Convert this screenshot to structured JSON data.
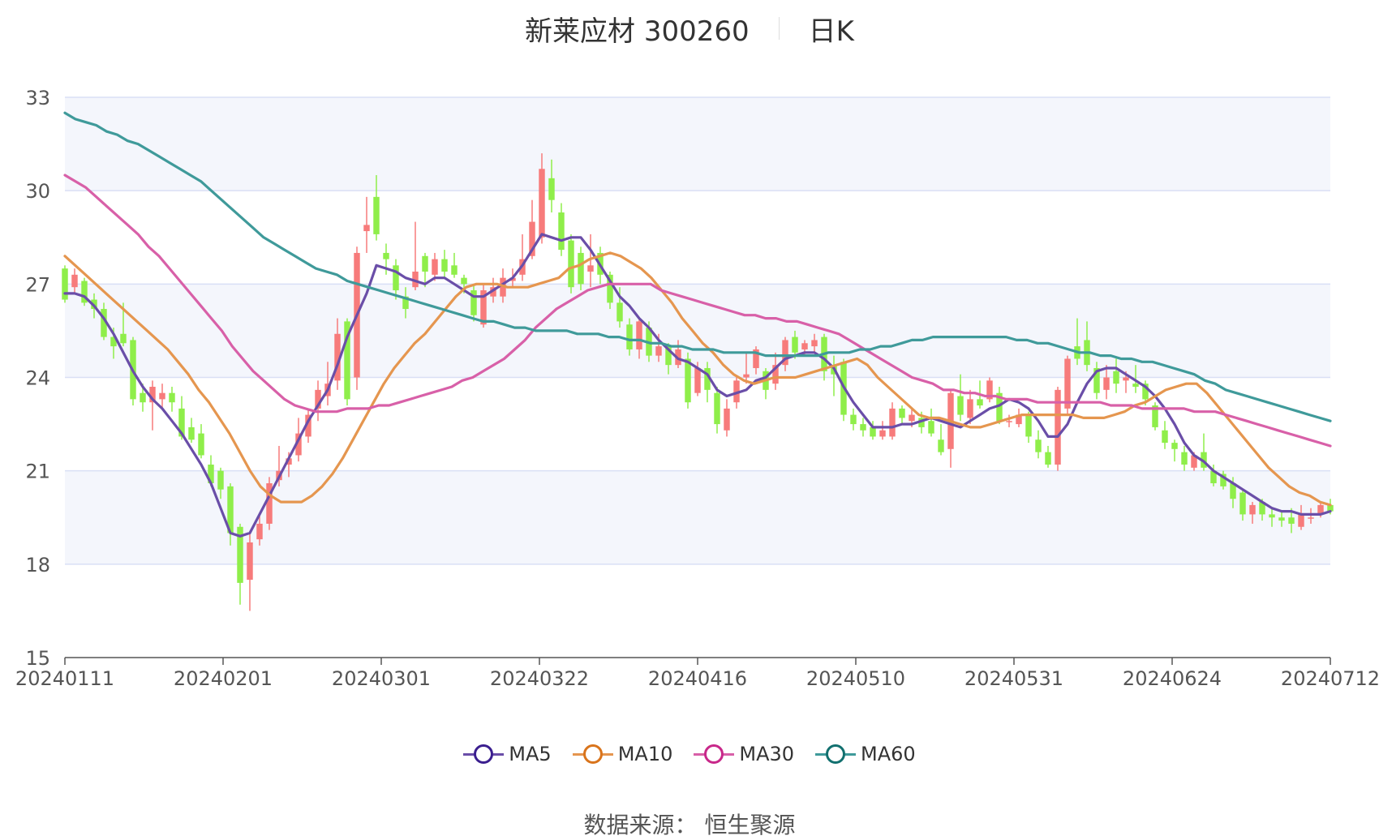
{
  "header": {
    "title": "新莱应材 300260",
    "period": "日K"
  },
  "legend": [
    {
      "name": "MA5",
      "color": "#6a4ea8",
      "ring": "#3b1f8f"
    },
    {
      "name": "MA10",
      "color": "#e5964f",
      "ring": "#d9741c"
    },
    {
      "name": "MA30",
      "color": "#d860a8",
      "ring": "#c8288a"
    },
    {
      "name": "MA60",
      "color": "#3f9a9a",
      "ring": "#12706f"
    }
  ],
  "source": "数据来源： 恒生聚源",
  "colors": {
    "up": "#f77b7b",
    "down": "#8fee4a",
    "grid": "#d9dff5",
    "band": "#f4f6fc"
  },
  "chart_data": {
    "type": "candlestick",
    "title": "新莱应材 300260",
    "y_ticks": [
      15,
      18,
      21,
      24,
      27,
      30,
      33
    ],
    "ylim": [
      15,
      33
    ],
    "x_ticks": [
      "20240111",
      "20240201",
      "20240301",
      "20240322",
      "20240416",
      "20240510",
      "20240531",
      "20240624",
      "20240712"
    ],
    "candles": [
      [
        27.5,
        26.5,
        27.6,
        26.4
      ],
      [
        26.9,
        27.3,
        27.5,
        26.7
      ],
      [
        27.1,
        26.4,
        27.2,
        26.3
      ],
      [
        26.5,
        26.2,
        26.7,
        25.9
      ],
      [
        26.2,
        25.3,
        26.4,
        25.2
      ],
      [
        25.3,
        25.0,
        25.6,
        24.6
      ],
      [
        25.4,
        25.1,
        26.4,
        25.0
      ],
      [
        25.2,
        23.3,
        25.3,
        23.1
      ],
      [
        23.5,
        23.2,
        23.8,
        22.9
      ],
      [
        23.2,
        23.7,
        23.9,
        22.3
      ],
      [
        23.3,
        23.5,
        23.8,
        23.0
      ],
      [
        23.5,
        23.2,
        23.7,
        22.9
      ],
      [
        23.0,
        22.1,
        23.4,
        22.0
      ],
      [
        22.4,
        22.0,
        22.7,
        21.9
      ],
      [
        22.2,
        21.5,
        22.5,
        21.4
      ],
      [
        21.2,
        20.6,
        21.5,
        20.5
      ],
      [
        21.0,
        20.4,
        21.1,
        20.1
      ],
      [
        20.5,
        19.0,
        20.6,
        18.6
      ],
      [
        19.2,
        17.4,
        19.3,
        16.7
      ],
      [
        17.5,
        18.7,
        19.0,
        16.5
      ],
      [
        18.8,
        19.3,
        19.6,
        18.6
      ],
      [
        19.3,
        20.6,
        20.8,
        19.1
      ],
      [
        20.7,
        21.0,
        21.8,
        20.5
      ],
      [
        21.2,
        21.4,
        21.6,
        20.8
      ],
      [
        21.5,
        22.2,
        22.7,
        21.3
      ],
      [
        22.1,
        22.8,
        23.0,
        21.9
      ],
      [
        23.0,
        23.6,
        23.9,
        22.6
      ],
      [
        23.4,
        23.8,
        24.5,
        23.1
      ],
      [
        23.9,
        25.4,
        25.9,
        23.6
      ],
      [
        25.8,
        23.3,
        25.9,
        23.1
      ],
      [
        24.0,
        28.0,
        28.2,
        23.6
      ],
      [
        28.7,
        28.9,
        29.8,
        28.0
      ],
      [
        29.8,
        28.6,
        30.5,
        28.4
      ],
      [
        28.0,
        27.8,
        28.3,
        27.3
      ],
      [
        27.6,
        26.8,
        27.8,
        26.5
      ],
      [
        26.6,
        26.2,
        26.9,
        25.9
      ],
      [
        26.9,
        27.4,
        29.0,
        26.8
      ],
      [
        27.9,
        27.4,
        28.0,
        26.9
      ],
      [
        27.3,
        27.8,
        28.0,
        27.1
      ],
      [
        27.8,
        27.4,
        28.1,
        27.2
      ],
      [
        27.6,
        27.3,
        28.0,
        27.2
      ],
      [
        27.2,
        27.0,
        27.3,
        26.7
      ],
      [
        26.8,
        26.0,
        27.0,
        25.8
      ],
      [
        25.7,
        26.8,
        27.0,
        25.6
      ],
      [
        26.6,
        26.9,
        27.2,
        26.4
      ],
      [
        26.6,
        27.2,
        27.5,
        26.4
      ],
      [
        27.1,
        27.2,
        27.5,
        26.9
      ],
      [
        27.3,
        27.8,
        28.6,
        27.1
      ],
      [
        27.9,
        29.0,
        29.7,
        27.8
      ],
      [
        28.5,
        30.7,
        31.2,
        28.3
      ],
      [
        30.4,
        29.7,
        31.0,
        29.3
      ],
      [
        29.3,
        28.1,
        29.6,
        27.9
      ],
      [
        28.4,
        26.9,
        28.6,
        26.7
      ],
      [
        28.0,
        27.0,
        28.2,
        26.8
      ],
      [
        27.4,
        27.6,
        28.6,
        26.9
      ],
      [
        28.0,
        27.3,
        28.2,
        27.0
      ],
      [
        27.3,
        26.4,
        27.4,
        26.2
      ],
      [
        26.4,
        25.8,
        26.9,
        25.6
      ],
      [
        25.7,
        24.9,
        25.9,
        24.7
      ],
      [
        24.9,
        25.8,
        25.9,
        24.6
      ],
      [
        25.6,
        24.7,
        25.8,
        24.5
      ],
      [
        24.7,
        25.0,
        25.4,
        24.5
      ],
      [
        25.0,
        24.4,
        25.1,
        24.1
      ],
      [
        24.4,
        24.9,
        25.2,
        24.3
      ],
      [
        24.6,
        23.2,
        24.8,
        23.0
      ],
      [
        23.5,
        24.3,
        24.5,
        23.4
      ],
      [
        24.3,
        23.6,
        24.5,
        23.2
      ],
      [
        23.5,
        22.5,
        23.7,
        22.2
      ],
      [
        22.3,
        23.0,
        23.3,
        22.1
      ],
      [
        23.2,
        23.9,
        24.0,
        23.0
      ],
      [
        24.0,
        24.1,
        24.8,
        23.8
      ],
      [
        24.3,
        24.9,
        25.0,
        24.1
      ],
      [
        24.2,
        23.6,
        24.3,
        23.3
      ],
      [
        23.8,
        24.4,
        24.8,
        23.6
      ],
      [
        24.4,
        25.2,
        25.3,
        24.2
      ],
      [
        25.3,
        24.8,
        25.5,
        24.6
      ],
      [
        24.9,
        25.1,
        25.2,
        24.7
      ],
      [
        25.0,
        25.2,
        25.4,
        24.8
      ],
      [
        25.3,
        24.2,
        25.4,
        23.9
      ],
      [
        24.4,
        24.1,
        24.7,
        23.4
      ],
      [
        24.5,
        22.8,
        24.6,
        22.6
      ],
      [
        22.8,
        22.5,
        23.0,
        22.3
      ],
      [
        22.5,
        22.3,
        22.7,
        22.1
      ],
      [
        22.4,
        22.1,
        22.6,
        22.0
      ],
      [
        22.1,
        22.3,
        22.6,
        22.0
      ],
      [
        22.1,
        23.0,
        23.2,
        22.0
      ],
      [
        23.0,
        22.7,
        23.1,
        22.5
      ],
      [
        22.6,
        22.8,
        23.0,
        22.4
      ],
      [
        22.7,
        22.4,
        22.9,
        22.2
      ],
      [
        22.6,
        22.2,
        23.0,
        22.1
      ],
      [
        22.0,
        21.6,
        22.5,
        21.5
      ],
      [
        21.7,
        23.5,
        23.6,
        21.1
      ],
      [
        23.4,
        22.8,
        24.1,
        22.6
      ],
      [
        22.7,
        23.3,
        23.6,
        22.5
      ],
      [
        23.3,
        23.1,
        23.9,
        23.0
      ],
      [
        23.3,
        23.9,
        24.0,
        23.2
      ],
      [
        23.5,
        22.6,
        23.7,
        22.5
      ],
      [
        22.6,
        22.6,
        22.8,
        22.4
      ],
      [
        22.5,
        22.8,
        23.0,
        22.4
      ],
      [
        22.8,
        22.1,
        22.9,
        21.9
      ],
      [
        22.0,
        21.6,
        22.3,
        21.4
      ],
      [
        21.6,
        21.2,
        21.8,
        21.1
      ],
      [
        21.2,
        23.6,
        23.7,
        21.0
      ],
      [
        23.0,
        24.6,
        24.7,
        22.8
      ],
      [
        25.0,
        24.6,
        25.9,
        24.4
      ],
      [
        25.2,
        24.4,
        25.8,
        24.2
      ],
      [
        24.3,
        23.5,
        24.5,
        23.3
      ],
      [
        23.6,
        24.0,
        24.4,
        23.3
      ],
      [
        24.2,
        23.8,
        24.6,
        23.5
      ],
      [
        23.9,
        24.0,
        24.2,
        23.5
      ],
      [
        23.8,
        23.7,
        24.4,
        23.5
      ],
      [
        23.8,
        23.3,
        23.9,
        23.1
      ],
      [
        23.1,
        22.4,
        23.2,
        22.3
      ],
      [
        22.3,
        21.9,
        22.6,
        21.7
      ],
      [
        21.9,
        21.7,
        22.0,
        21.3
      ],
      [
        21.6,
        21.2,
        21.8,
        21.0
      ],
      [
        21.1,
        21.5,
        21.6,
        21.0
      ],
      [
        21.6,
        21.1,
        22.2,
        21.0
      ],
      [
        21.0,
        20.6,
        21.2,
        20.5
      ],
      [
        20.9,
        20.5,
        21.0,
        20.4
      ],
      [
        20.6,
        20.1,
        20.8,
        19.8
      ],
      [
        20.3,
        19.6,
        20.4,
        19.4
      ],
      [
        19.6,
        19.9,
        20.0,
        19.3
      ],
      [
        20.0,
        19.6,
        20.1,
        19.4
      ],
      [
        19.6,
        19.5,
        19.8,
        19.2
      ],
      [
        19.5,
        19.4,
        19.7,
        19.2
      ],
      [
        19.5,
        19.3,
        19.8,
        19.0
      ],
      [
        19.2,
        19.6,
        19.9,
        19.1
      ],
      [
        19.5,
        19.5,
        19.8,
        19.3
      ],
      [
        19.6,
        19.9,
        20.0,
        19.5
      ],
      [
        19.9,
        19.7,
        20.1,
        19.6
      ]
    ],
    "series": [
      {
        "name": "MA5",
        "color": "#6a4ea8",
        "values": [
          26.7,
          26.7,
          26.6,
          26.3,
          25.9,
          25.4,
          24.8,
          24.2,
          23.7,
          23.3,
          23.0,
          22.6,
          22.2,
          21.7,
          21.2,
          20.6,
          19.8,
          19.0,
          18.9,
          19.0,
          19.6,
          20.2,
          20.8,
          21.4,
          22.0,
          22.6,
          23.1,
          23.6,
          24.4,
          25.3,
          26.0,
          26.7,
          27.6,
          27.5,
          27.4,
          27.2,
          27.1,
          27.0,
          27.2,
          27.2,
          27.0,
          26.8,
          26.6,
          26.6,
          26.8,
          27.0,
          27.2,
          27.6,
          28.1,
          28.6,
          28.5,
          28.4,
          28.5,
          28.5,
          28.1,
          27.6,
          27.1,
          26.6,
          26.3,
          25.9,
          25.6,
          25.2,
          24.9,
          24.6,
          24.5,
          24.3,
          24.1,
          23.6,
          23.4,
          23.5,
          23.6,
          23.9,
          24.0,
          24.3,
          24.6,
          24.7,
          24.8,
          24.8,
          24.6,
          24.3,
          23.7,
          23.2,
          22.8,
          22.4,
          22.4,
          22.4,
          22.5,
          22.5,
          22.6,
          22.7,
          22.6,
          22.5,
          22.4,
          22.6,
          22.8,
          23.0,
          23.1,
          23.3,
          23.2,
          23.0,
          22.6,
          22.1,
          22.1,
          22.5,
          23.2,
          23.8,
          24.2,
          24.3,
          24.3,
          24.1,
          23.9,
          23.7,
          23.4,
          23.0,
          22.5,
          21.9,
          21.5,
          21.3,
          21.0,
          20.8,
          20.6,
          20.4,
          20.2,
          20.0,
          19.8,
          19.7,
          19.7,
          19.6,
          19.6,
          19.6,
          19.7
        ]
      },
      {
        "name": "MA10",
        "color": "#e5964f",
        "values": [
          27.9,
          27.6,
          27.3,
          27.0,
          26.7,
          26.4,
          26.1,
          25.8,
          25.5,
          25.2,
          24.9,
          24.5,
          24.1,
          23.6,
          23.2,
          22.7,
          22.2,
          21.6,
          21.0,
          20.5,
          20.2,
          20.0,
          20.0,
          20.0,
          20.2,
          20.5,
          20.9,
          21.4,
          22.0,
          22.6,
          23.2,
          23.8,
          24.3,
          24.7,
          25.1,
          25.4,
          25.8,
          26.2,
          26.6,
          26.9,
          27.0,
          27.0,
          27.0,
          26.9,
          26.9,
          26.9,
          27.0,
          27.1,
          27.2,
          27.5,
          27.6,
          27.8,
          27.9,
          28.0,
          27.9,
          27.7,
          27.5,
          27.2,
          26.8,
          26.4,
          25.9,
          25.5,
          25.1,
          24.8,
          24.4,
          24.1,
          23.9,
          23.8,
          23.9,
          24.0,
          24.0,
          24.0,
          24.1,
          24.2,
          24.3,
          24.4,
          24.5,
          24.6,
          24.4,
          24.0,
          23.7,
          23.4,
          23.1,
          22.8,
          22.7,
          22.7,
          22.6,
          22.5,
          22.4,
          22.4,
          22.5,
          22.6,
          22.7,
          22.8,
          22.8,
          22.8,
          22.8,
          22.8,
          22.8,
          22.7,
          22.7,
          22.7,
          22.8,
          22.9,
          23.1,
          23.2,
          23.4,
          23.6,
          23.7,
          23.8,
          23.8,
          23.5,
          23.1,
          22.7,
          22.3,
          21.9,
          21.5,
          21.1,
          20.8,
          20.5,
          20.3,
          20.2,
          20.0,
          19.9
        ]
      },
      {
        "name": "MA30",
        "color": "#d860a8",
        "values": [
          30.5,
          30.3,
          30.1,
          29.8,
          29.5,
          29.2,
          28.9,
          28.6,
          28.2,
          27.9,
          27.5,
          27.1,
          26.7,
          26.3,
          25.9,
          25.5,
          25.0,
          24.6,
          24.2,
          23.9,
          23.6,
          23.3,
          23.1,
          23.0,
          22.9,
          22.9,
          22.9,
          23.0,
          23.0,
          23.0,
          23.1,
          23.1,
          23.2,
          23.3,
          23.4,
          23.5,
          23.6,
          23.7,
          23.9,
          24.0,
          24.2,
          24.4,
          24.6,
          24.9,
          25.2,
          25.6,
          25.9,
          26.2,
          26.4,
          26.6,
          26.8,
          26.9,
          27.0,
          27.0,
          27.0,
          27.0,
          27.0,
          26.8,
          26.7,
          26.6,
          26.5,
          26.4,
          26.3,
          26.2,
          26.1,
          26.0,
          26.0,
          25.9,
          25.9,
          25.8,
          25.8,
          25.7,
          25.6,
          25.5,
          25.4,
          25.2,
          25.0,
          24.8,
          24.6,
          24.4,
          24.2,
          24.0,
          23.9,
          23.8,
          23.6,
          23.6,
          23.5,
          23.5,
          23.4,
          23.4,
          23.3,
          23.3,
          23.3,
          23.2,
          23.2,
          23.2,
          23.2,
          23.2,
          23.2,
          23.2,
          23.1,
          23.1,
          23.1,
          23.0,
          23.0,
          23.0,
          23.0,
          23.0,
          22.9,
          22.9,
          22.9,
          22.8,
          22.7,
          22.6,
          22.5,
          22.4,
          22.3,
          22.2,
          22.1,
          22.0,
          21.9,
          21.8
        ]
      },
      {
        "name": "MA60",
        "color": "#3f9a9a",
        "values": [
          32.5,
          32.3,
          32.2,
          32.1,
          31.9,
          31.8,
          31.6,
          31.5,
          31.3,
          31.1,
          30.9,
          30.7,
          30.5,
          30.3,
          30.0,
          29.7,
          29.4,
          29.1,
          28.8,
          28.5,
          28.3,
          28.1,
          27.9,
          27.7,
          27.5,
          27.4,
          27.3,
          27.1,
          27.0,
          26.9,
          26.8,
          26.7,
          26.6,
          26.5,
          26.4,
          26.3,
          26.2,
          26.1,
          26.0,
          25.9,
          25.8,
          25.8,
          25.7,
          25.6,
          25.6,
          25.5,
          25.5,
          25.5,
          25.5,
          25.4,
          25.4,
          25.4,
          25.3,
          25.3,
          25.2,
          25.2,
          25.1,
          25.1,
          25.0,
          25.0,
          24.9,
          24.9,
          24.9,
          24.8,
          24.8,
          24.8,
          24.8,
          24.7,
          24.7,
          24.7,
          24.7,
          24.7,
          24.7,
          24.8,
          24.8,
          24.8,
          24.9,
          24.9,
          25.0,
          25.0,
          25.1,
          25.2,
          25.2,
          25.3,
          25.3,
          25.3,
          25.3,
          25.3,
          25.3,
          25.3,
          25.3,
          25.2,
          25.2,
          25.1,
          25.1,
          25.0,
          24.9,
          24.8,
          24.8,
          24.7,
          24.7,
          24.6,
          24.6,
          24.5,
          24.5,
          24.4,
          24.3,
          24.2,
          24.1,
          23.9,
          23.8,
          23.6,
          23.5,
          23.4,
          23.3,
          23.2,
          23.1,
          23.0,
          22.9,
          22.8,
          22.7,
          22.6
        ]
      }
    ]
  }
}
